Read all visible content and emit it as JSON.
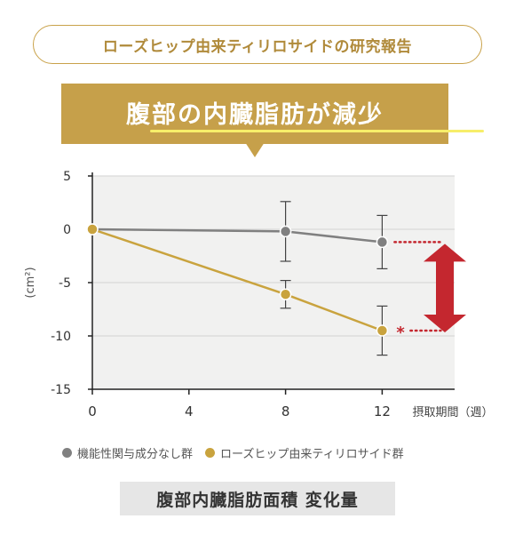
{
  "header": {
    "study_title": "ローズヒップ由来ティリロサイドの研究報告"
  },
  "banner": {
    "title": "腹部の内臓脂肪が減少"
  },
  "chart_data": {
    "type": "line",
    "ylabel": "(cm²)",
    "xlabel": "摂取期間（週）",
    "x": [
      0,
      8,
      12
    ],
    "xticks": [
      0,
      4,
      8,
      12
    ],
    "xlim": [
      0,
      15
    ],
    "ylim": [
      -15,
      5
    ],
    "yticks": [
      5,
      0,
      -5,
      -10,
      -15
    ],
    "grid": true,
    "series": [
      {
        "name": "機能性関与成分なし群",
        "color": "#808080",
        "values": [
          0,
          -0.2,
          -1.2
        ],
        "err": [
          0,
          2.8,
          2.5
        ]
      },
      {
        "name": "ローズヒップ由来ティリロサイド群",
        "color": "#c9a33e",
        "values": [
          0,
          -6.1,
          -9.5
        ],
        "err": [
          0,
          1.3,
          2.3
        ]
      }
    ],
    "annotation": {
      "significance_mark": "*",
      "color": "#c4272f"
    }
  },
  "caption": "腹部内臓脂肪面積 変化量"
}
